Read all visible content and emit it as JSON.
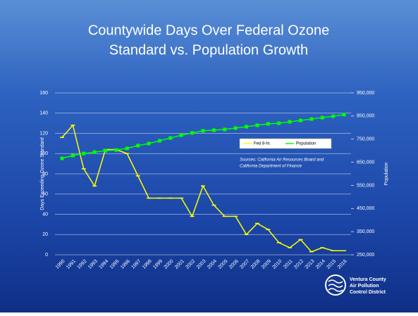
{
  "chart_data": {
    "type": "line",
    "title_lines": [
      "Countywide Days Over Federal Ozone",
      "Standard vs. Population Growth"
    ],
    "y_label": "Days Exceeding Ozone Standard",
    "y2_label": "Population",
    "categories": [
      "1990",
      "1991",
      "1992",
      "1993",
      "1994",
      "1995",
      "1996",
      "1997",
      "1998",
      "1999",
      "2000",
      "2001",
      "2002",
      "2003",
      "2004",
      "2005",
      "2006",
      "2007",
      "2008",
      "2009",
      "2010",
      "2011",
      "2012",
      "2013",
      "2014",
      "2015",
      "2016"
    ],
    "series": [
      {
        "name": "Fed 8-hr.",
        "color": "#ffff00",
        "values": [
          116,
          128,
          85,
          68,
          104,
          104,
          100,
          78,
          56,
          56,
          56,
          56,
          38,
          68,
          49,
          38,
          38,
          20,
          31,
          25,
          12,
          7,
          15,
          3,
          7,
          4,
          4
        ]
      },
      {
        "name": "Population",
        "color": "#00ff00",
        "axis": "y2",
        "values": [
          667000,
          679000,
          688000,
          694000,
          700000,
          703000,
          710000,
          722000,
          731000,
          743000,
          755000,
          767000,
          777000,
          786000,
          789000,
          792000,
          798000,
          804000,
          810000,
          816000,
          819000,
          825000,
          831000,
          837000,
          843000,
          849000,
          856000
        ]
      }
    ],
    "ylim": [
      0,
      160
    ],
    "yticks": [
      0,
      20,
      40,
      60,
      80,
      100,
      120,
      140,
      160
    ],
    "y2lim": [
      250000,
      950000
    ],
    "y2ticks": [
      {
        "value": 250000,
        "label": "250,000"
      },
      {
        "value": 350000,
        "label": "350,000"
      },
      {
        "value": 450000,
        "label": "450,000"
      },
      {
        "value": 550000,
        "label": "550,000"
      },
      {
        "value": 650000,
        "label": "650,000"
      },
      {
        "value": 750000,
        "label": "750,000"
      },
      {
        "value": 850000,
        "label": "850,000"
      },
      {
        "value": 950000,
        "label": "950,000"
      }
    ],
    "grid": true,
    "annotation_lines": [
      "Sources: California Air Resources Board and",
      "California Department of Finance"
    ],
    "logo_lines": [
      "Ventura County",
      "Air Pollution",
      "Control District"
    ]
  }
}
